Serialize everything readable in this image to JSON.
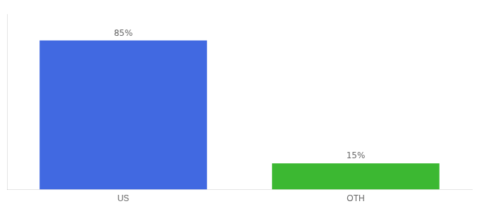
{
  "chart_data": {
    "type": "bar",
    "categories": [
      "US",
      "OTH"
    ],
    "values": [
      85,
      15
    ],
    "value_labels": [
      "85%",
      "15%"
    ],
    "data_labels": true,
    "colors": [
      "#4169E1",
      "#3CB832"
    ],
    "ylim": [
      0,
      100
    ],
    "grid": false,
    "tick_labels": "x"
  }
}
